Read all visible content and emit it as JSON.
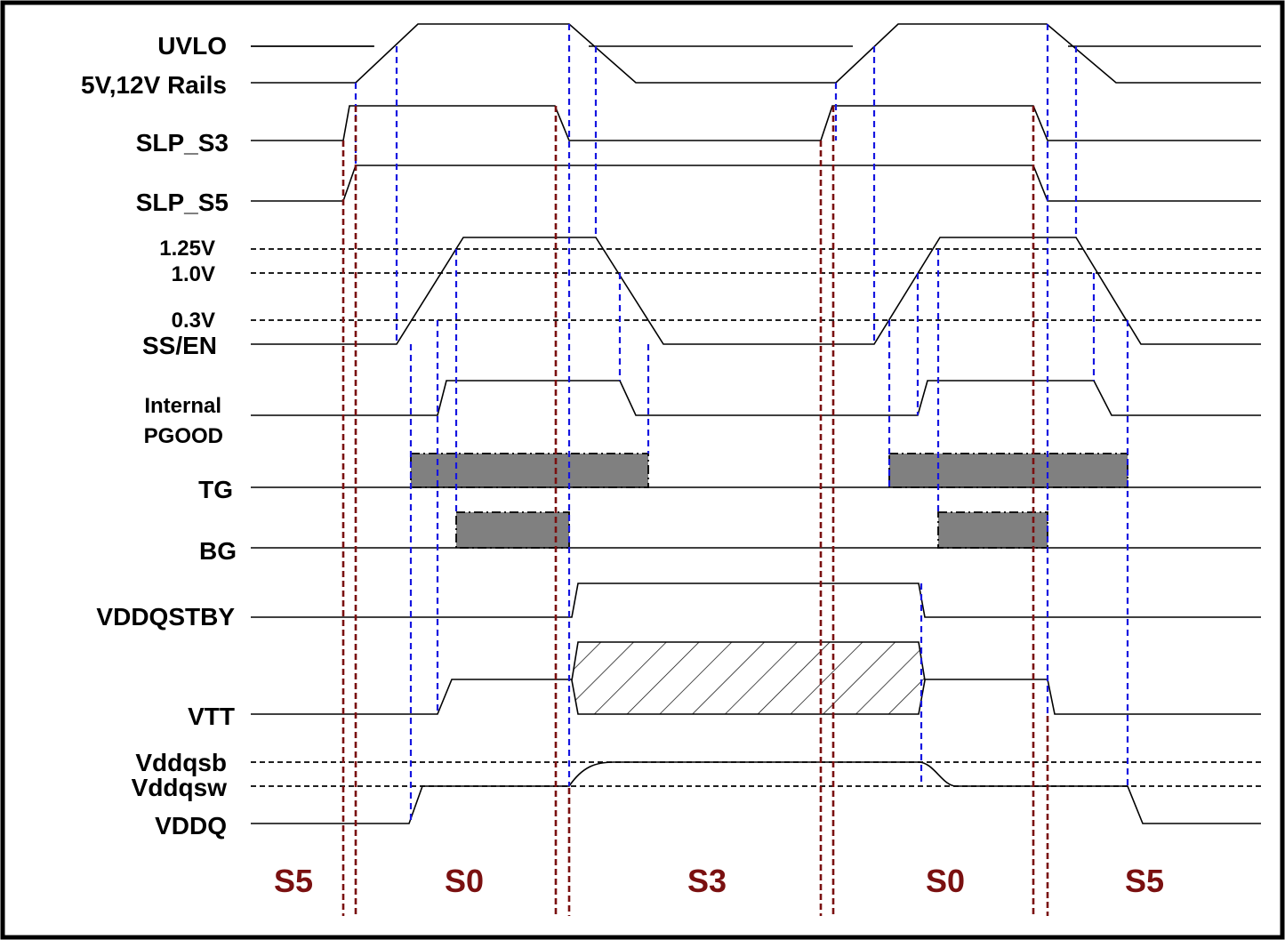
{
  "signals": {
    "uvlo": "UVLO",
    "rails": "5V,12V Rails",
    "slp_s3": "SLP_S3",
    "slp_s5": "SLP_S5",
    "lvl_125": "1.25V",
    "lvl_10": "1.0V",
    "lvl_03": "0.3V",
    "ss_en": "SS/EN",
    "pgood_1": "Internal",
    "pgood_2": "PGOOD",
    "tg": "TG",
    "bg": "BG",
    "vddqstby": "VDDQSTBY",
    "vtt": "VTT",
    "vddqsb": "Vddqsb",
    "vddqsw": "Vddqsw",
    "vddq": "VDDQ"
  },
  "states": {
    "s5_left": "S5",
    "s0_left": "S0",
    "s3": "S3",
    "s0_right": "S0",
    "s5_right": "S5"
  },
  "colors": {
    "border": "#000000",
    "wave": "#000000",
    "blue_marker": "#1515e0",
    "red_marker": "#7a1010",
    "state_text": "#7a1010",
    "gate_fill": "#808080"
  }
}
